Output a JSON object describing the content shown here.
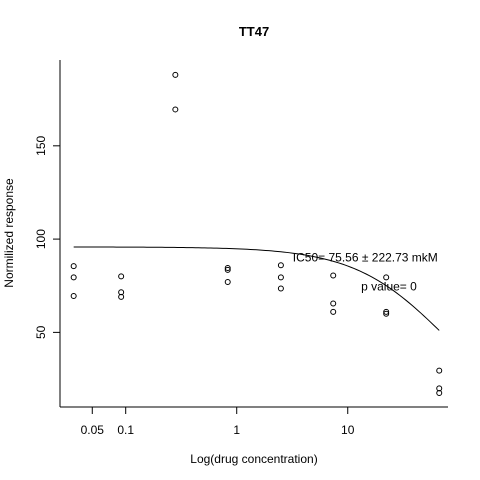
{
  "chart_data": {
    "type": "scatter",
    "title": "TT47",
    "xlabel": "Log(drug concentration)",
    "ylabel": "Normilized response",
    "x_scale": "log",
    "xlim": [
      0.0256,
      80
    ],
    "ylim": [
      10,
      196
    ],
    "x_ticks": [
      {
        "value": 0.05,
        "label": "0.05"
      },
      {
        "value": 0.1,
        "label": "0.1"
      },
      {
        "value": 1,
        "label": "1"
      },
      {
        "value": 10,
        "label": "10"
      }
    ],
    "y_ticks": [
      {
        "value": 50,
        "label": "50"
      },
      {
        "value": 100,
        "label": "100"
      },
      {
        "value": 150,
        "label": "150"
      }
    ],
    "grid": false,
    "legend": "none",
    "points": [
      {
        "x": 0.034,
        "y": 85.5
      },
      {
        "x": 0.034,
        "y": 79.5
      },
      {
        "x": 0.034,
        "y": 69.5
      },
      {
        "x": 0.091,
        "y": 80
      },
      {
        "x": 0.091,
        "y": 71.5
      },
      {
        "x": 0.091,
        "y": 69
      },
      {
        "x": 0.28,
        "y": 188
      },
      {
        "x": 0.28,
        "y": 169.5
      },
      {
        "x": 0.83,
        "y": 84.5
      },
      {
        "x": 0.83,
        "y": 83.5
      },
      {
        "x": 0.83,
        "y": 77
      },
      {
        "x": 2.5,
        "y": 86
      },
      {
        "x": 2.5,
        "y": 79.5
      },
      {
        "x": 2.5,
        "y": 73.5
      },
      {
        "x": 7.4,
        "y": 80.5
      },
      {
        "x": 7.4,
        "y": 65.5
      },
      {
        "x": 7.4,
        "y": 61
      },
      {
        "x": 22.2,
        "y": 79.5
      },
      {
        "x": 22.2,
        "y": 61
      },
      {
        "x": 22.2,
        "y": 60
      },
      {
        "x": 66.7,
        "y": 29.5
      },
      {
        "x": 66.7,
        "y": 20
      },
      {
        "x": 66.7,
        "y": 17.5
      }
    ],
    "fit_curve": {
      "x_range": [
        0.034,
        66.7
      ],
      "top": 95.8,
      "ic50": 75.56,
      "hill": 1.05
    },
    "annotations": [
      {
        "text": "IC50= 75.56 ± 222.73 mkM",
        "x": 3.2,
        "y": 88
      },
      {
        "text": "p value= 0",
        "x": 13.2,
        "y": 72.5
      }
    ],
    "point_color": "#000000",
    "line_color": "#000000"
  }
}
